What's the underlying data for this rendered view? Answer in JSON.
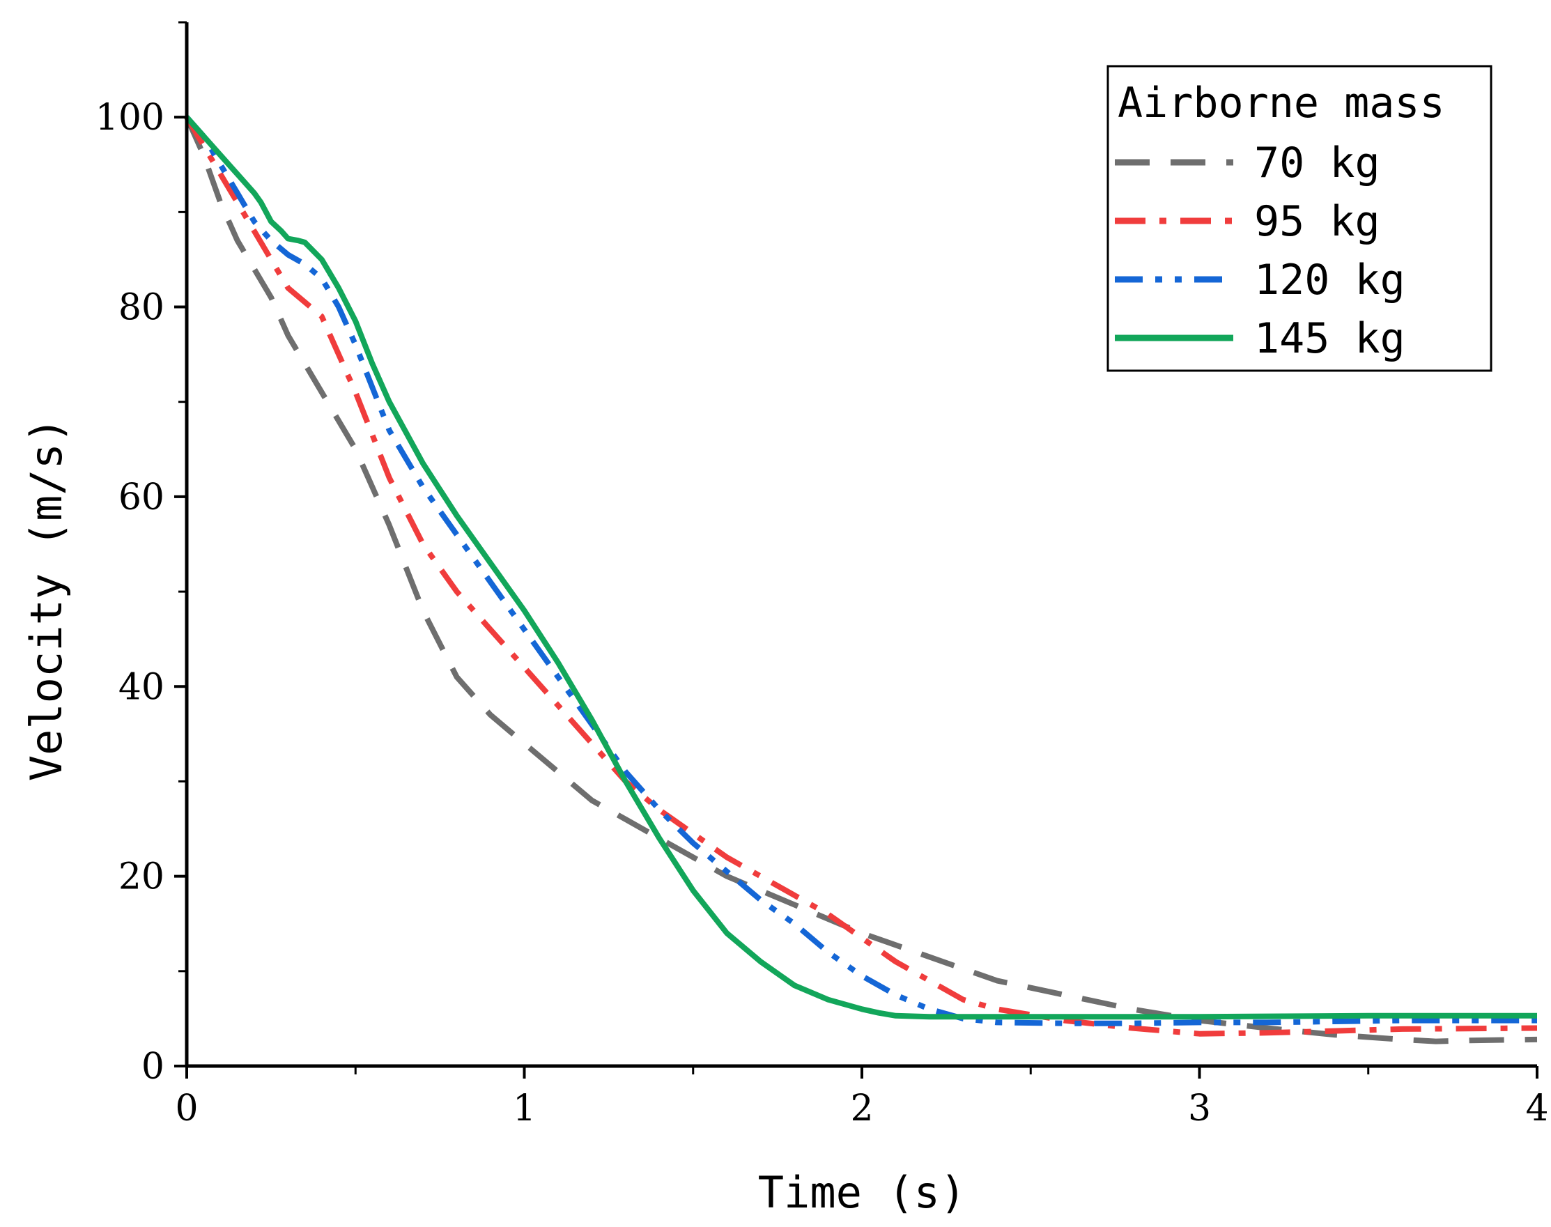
{
  "chart_data": {
    "type": "line",
    "title": "",
    "xlabel": "Time (s)",
    "ylabel": "Velocity (m/s)",
    "xlim": [
      0,
      4
    ],
    "ylim": [
      0,
      110
    ],
    "xticks": [
      0,
      1,
      2,
      3,
      4
    ],
    "xtick_labels": [
      "0",
      "1",
      "2",
      "3",
      "4"
    ],
    "yticks": [
      0,
      20,
      40,
      60,
      80,
      100
    ],
    "ytick_labels": [
      "0",
      "20",
      "40",
      "60",
      "80",
      "100"
    ],
    "grid": false,
    "legend": {
      "title": "Airborne mass",
      "position": "top-right"
    },
    "series": [
      {
        "name": "70 kg",
        "color": "#6e6e6e",
        "style": "dash",
        "x": [
          0,
          0.05,
          0.1,
          0.15,
          0.2,
          0.25,
          0.3,
          0.4,
          0.5,
          0.6,
          0.7,
          0.8,
          0.9,
          1.0,
          1.1,
          1.2,
          1.3,
          1.4,
          1.5,
          1.6,
          1.7,
          1.8,
          1.9,
          2.0,
          2.2,
          2.4,
          2.6,
          2.8,
          3.0,
          3.2,
          3.4,
          3.6,
          3.7,
          3.8,
          4.0
        ],
        "y": [
          100,
          96,
          91,
          87,
          84,
          81,
          77,
          71,
          65,
          57,
          48,
          41,
          37,
          34,
          31,
          28,
          26,
          24,
          22,
          20,
          18.5,
          17,
          15.5,
          14,
          11.5,
          9,
          7.5,
          6,
          4.8,
          4,
          3.3,
          2.8,
          2.6,
          2.7,
          2.8
        ]
      },
      {
        "name": "95 kg",
        "color": "#f03c3c",
        "style": "dashdot",
        "x": [
          0,
          0.05,
          0.1,
          0.15,
          0.2,
          0.25,
          0.3,
          0.35,
          0.4,
          0.5,
          0.6,
          0.7,
          0.8,
          0.9,
          1.0,
          1.1,
          1.2,
          1.3,
          1.4,
          1.5,
          1.6,
          1.7,
          1.8,
          1.9,
          2.0,
          2.1,
          2.2,
          2.3,
          2.4,
          2.6,
          2.8,
          3.0,
          3.2,
          3.4,
          3.6,
          4.0
        ],
        "y": [
          100,
          97,
          94,
          91,
          88,
          85,
          82,
          80.5,
          79,
          71,
          62,
          55,
          50,
          46,
          42,
          38,
          34,
          30,
          27,
          24.5,
          22,
          20,
          18,
          16,
          13.5,
          11,
          9,
          7,
          6,
          4.8,
          4,
          3.4,
          3.5,
          3.7,
          3.9,
          4
        ]
      },
      {
        "name": "120 kg",
        "color": "#1466d6",
        "style": "dashdotdot",
        "x": [
          0,
          0.05,
          0.1,
          0.15,
          0.2,
          0.25,
          0.3,
          0.35,
          0.4,
          0.45,
          0.5,
          0.6,
          0.7,
          0.8,
          0.9,
          1.0,
          1.1,
          1.2,
          1.3,
          1.4,
          1.5,
          1.6,
          1.7,
          1.8,
          1.9,
          2.0,
          2.1,
          2.2,
          2.3,
          2.4,
          2.6,
          2.8,
          3.0,
          3.2,
          3.4,
          3.6,
          4.0
        ],
        "y": [
          100,
          98,
          95,
          92,
          89,
          87,
          85.5,
          84.5,
          83,
          80,
          76,
          67,
          61,
          56,
          51,
          46,
          41,
          36,
          31,
          27,
          23.5,
          20.5,
          17.5,
          15,
          12,
          9.5,
          7.5,
          6,
          5,
          4.6,
          4.5,
          4.5,
          4.6,
          4.6,
          4.7,
          4.8,
          4.8
        ]
      },
      {
        "name": "145 kg",
        "color": "#12a65a",
        "style": "solid",
        "x": [
          0,
          0.05,
          0.1,
          0.15,
          0.2,
          0.22,
          0.25,
          0.28,
          0.3,
          0.33,
          0.35,
          0.4,
          0.45,
          0.5,
          0.55,
          0.6,
          0.7,
          0.8,
          0.9,
          1.0,
          1.1,
          1.2,
          1.3,
          1.4,
          1.5,
          1.6,
          1.7,
          1.8,
          1.9,
          2.0,
          2.05,
          2.1,
          2.2,
          2.5,
          3.0,
          3.5,
          4.0
        ],
        "y": [
          100,
          98,
          96,
          94,
          92,
          91,
          89,
          88,
          87.2,
          87,
          86.8,
          85,
          82,
          78.5,
          74,
          70,
          63.5,
          58,
          53,
          48,
          42.5,
          36.5,
          30,
          24,
          18.5,
          14,
          11,
          8.5,
          7,
          6,
          5.6,
          5.3,
          5.2,
          5.2,
          5.2,
          5.3,
          5.3
        ]
      }
    ]
  }
}
